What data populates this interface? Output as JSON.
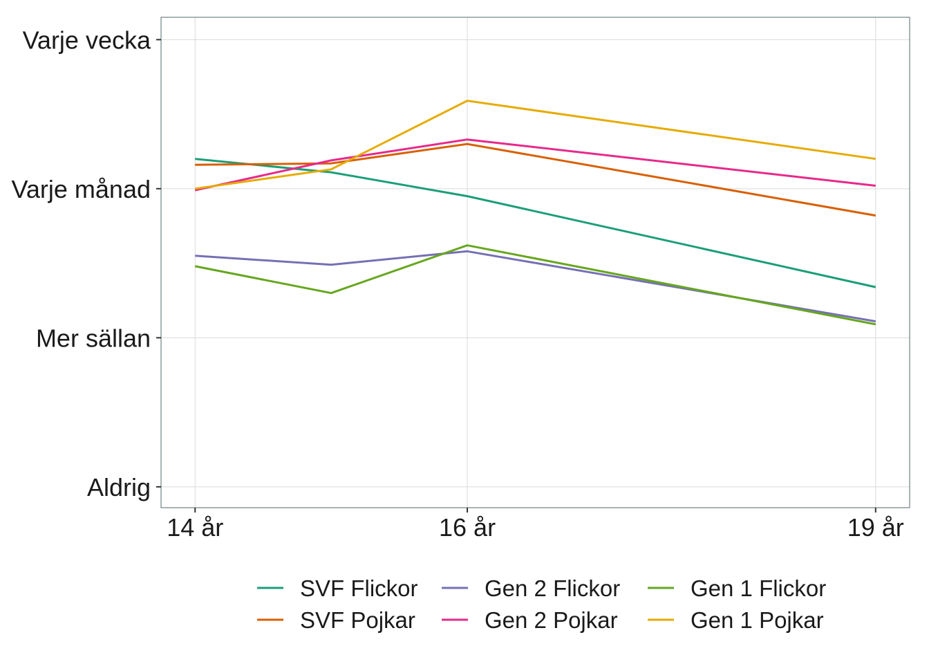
{
  "chart_data": {
    "type": "line",
    "title": "",
    "xlabel": "",
    "ylabel": "",
    "x": [
      0,
      1,
      2,
      5
    ],
    "x_ticks": [
      {
        "value": 0,
        "label": "14 år"
      },
      {
        "value": 2,
        "label": "16 år"
      },
      {
        "value": 5,
        "label": "19 år"
      }
    ],
    "xlim": [
      -0.25,
      5.25
    ],
    "y_ticks": [
      {
        "value": 0,
        "label": "Aldrig"
      },
      {
        "value": 1,
        "label": "Mer sällan"
      },
      {
        "value": 2,
        "label": "Varje månad"
      },
      {
        "value": 3,
        "label": "Varje vecka"
      }
    ],
    "ylim": [
      -0.14,
      3.15
    ],
    "grid": true,
    "legend_position": "bottom",
    "series": [
      {
        "name": "SVF Flickor",
        "color": "#1b9e77",
        "values": [
          2.2,
          2.11,
          1.95,
          1.34
        ]
      },
      {
        "name": "SVF Pojkar",
        "color": "#d95f02",
        "values": [
          2.16,
          2.17,
          2.3,
          1.82
        ]
      },
      {
        "name": "Gen 2 Flickor",
        "color": "#7570b3",
        "values": [
          1.55,
          1.49,
          1.58,
          1.11
        ]
      },
      {
        "name": "Gen 2 Pojkar",
        "color": "#e7298a",
        "values": [
          1.99,
          2.19,
          2.33,
          2.02
        ]
      },
      {
        "name": "Gen 1 Flickor",
        "color": "#66a61e",
        "values": [
          1.48,
          1.3,
          1.62,
          1.09
        ]
      },
      {
        "name": "Gen 1 Pojkar",
        "color": "#e6ab02",
        "values": [
          2.0,
          2.13,
          2.59,
          2.2
        ]
      }
    ]
  }
}
